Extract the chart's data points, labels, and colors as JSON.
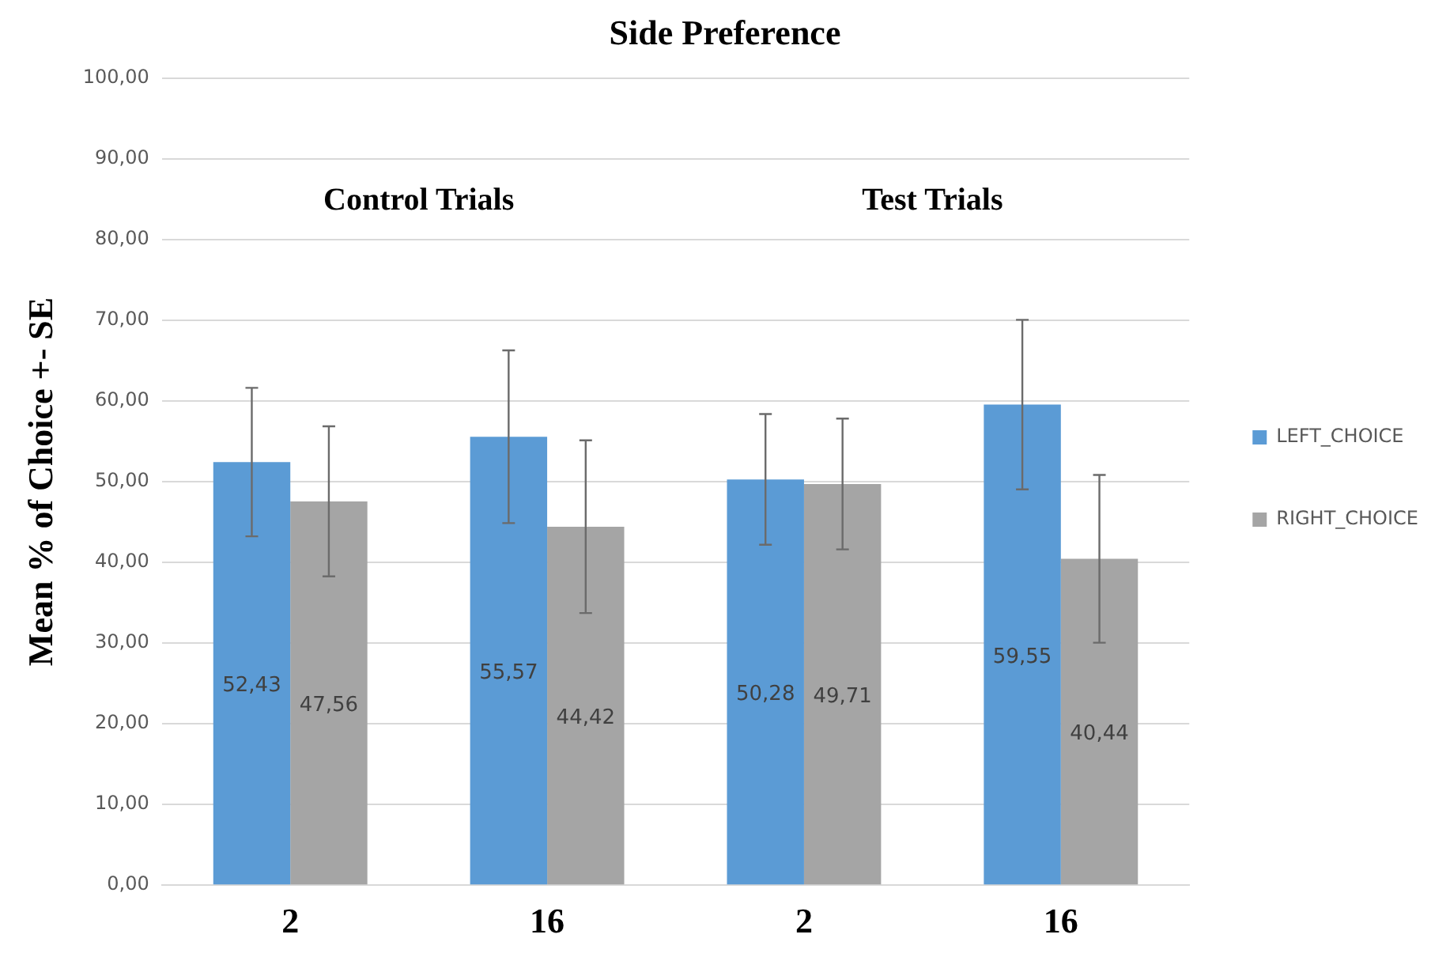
{
  "chart_data": {
    "type": "bar",
    "title": "Side Preference",
    "ylabel": "Mean % of Choice +- SE",
    "categories": [
      "2",
      "16",
      "2",
      "16"
    ],
    "series": [
      {
        "name": "LEFT_CHOICE",
        "color": "#5b9bd5",
        "values": [
          52.43,
          55.57,
          50.28,
          59.55
        ],
        "errors": [
          9.2,
          10.7,
          8.1,
          10.5
        ],
        "value_labels": [
          "52,43",
          "55,57",
          "50,28",
          "59,55"
        ]
      },
      {
        "name": "RIGHT_CHOICE",
        "color": "#a5a5a5",
        "values": [
          47.56,
          44.42,
          49.71,
          40.44
        ],
        "errors": [
          9.3,
          10.7,
          8.1,
          10.4
        ],
        "value_labels": [
          "47,56",
          "44,42",
          "49,71",
          "40,44"
        ]
      }
    ],
    "ylim": [
      0,
      100
    ],
    "yticks": [
      {
        "value": 0,
        "label": "0,00"
      },
      {
        "value": 10,
        "label": "10,00"
      },
      {
        "value": 20,
        "label": "20,00"
      },
      {
        "value": 30,
        "label": "30,00"
      },
      {
        "value": 40,
        "label": "40,00"
      },
      {
        "value": 50,
        "label": "50,00"
      },
      {
        "value": 60,
        "label": "60,00"
      },
      {
        "value": 70,
        "label": "70,00"
      },
      {
        "value": 80,
        "label": "80,00"
      },
      {
        "value": 90,
        "label": "90,00"
      },
      {
        "value": 100,
        "label": "100,00"
      }
    ],
    "grid": "y",
    "legend": "right",
    "annotations": [
      "Control Trials",
      "Test Trials"
    ]
  }
}
